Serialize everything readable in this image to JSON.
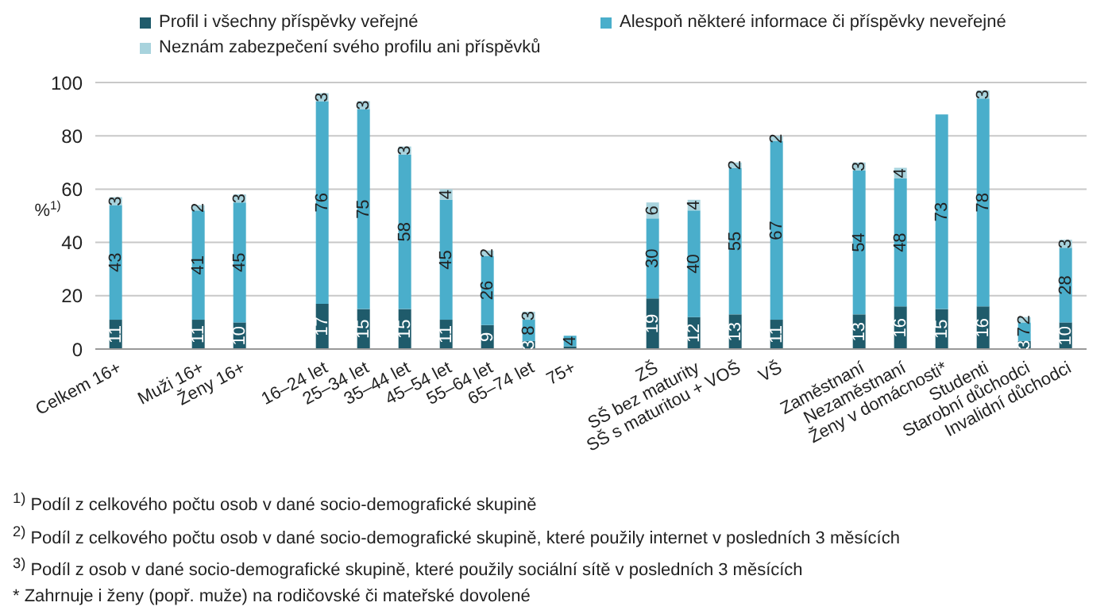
{
  "chart_data": {
    "type": "bar",
    "stacked": true,
    "ylabel": "%$^{1)}$",
    "categories": [
      "Celkem 16+",
      null,
      "Muži 16+",
      "Ženy 16+",
      null,
      "16–24 let",
      "25–34 let",
      "35–44 let",
      "45–54 let",
      "55–64 let",
      "65–74 let",
      "75+",
      null,
      "ZŠ",
      "SŠ bez maturity",
      "SŠ s maturitou + VOŠ",
      "VŠ",
      null,
      "Zaměstnaní",
      "Nezaměstnaní",
      "Ženy v domácnosti*",
      "Studenti",
      "Starobní důchodci",
      "Invalidní důchodci"
    ],
    "series": [
      {
        "name": "Profil i všechny příspěvky veřejné",
        "color": "#1f5b6b",
        "values": [
          11,
          null,
          11,
          10,
          null,
          17,
          15,
          15,
          11,
          9,
          3,
          1,
          null,
          19,
          12,
          13,
          11,
          null,
          13,
          16,
          15,
          16,
          3,
          10
        ],
        "value_labels": [
          "11",
          null,
          "11",
          "10",
          null,
          "17",
          "15",
          "15",
          "11",
          "9",
          "3",
          null,
          null,
          "19",
          "12",
          "13",
          "11",
          null,
          "13",
          "16",
          "15",
          "16",
          "3",
          "10"
        ]
      },
      {
        "name": "Alespoň některé informace či příspěvky neveřejné",
        "color": "#4aaecb",
        "values": [
          43,
          null,
          41,
          45,
          null,
          76,
          75,
          58,
          45,
          26,
          8,
          4,
          null,
          30,
          40,
          55,
          67,
          null,
          54,
          48,
          73,
          78,
          7,
          28
        ],
        "value_labels": [
          "43",
          null,
          "41",
          "45",
          null,
          "76",
          "75",
          "58",
          "45",
          "26",
          "8",
          "4",
          null,
          "30",
          "40",
          "55",
          "67",
          null,
          "54",
          "48",
          "73",
          "78",
          "7",
          "28"
        ]
      },
      {
        "name": "Neznám zabezpečení svého profilu ani příspěvků",
        "color": "#a8d3dd",
        "values": [
          3,
          null,
          2,
          3,
          null,
          3,
          3,
          3,
          4,
          2,
          3,
          null,
          null,
          6,
          4,
          2,
          2,
          null,
          3,
          4,
          null,
          3,
          2,
          3
        ],
        "value_labels": [
          "3",
          null,
          "2",
          "3",
          null,
          "3",
          "3",
          "3",
          "4",
          "2",
          "3",
          null,
          null,
          "6",
          "4",
          "2",
          "2",
          null,
          "3",
          "4",
          null,
          "3",
          "2",
          "3"
        ]
      }
    ],
    "ylim": [
      0,
      100
    ],
    "yticks": [
      0,
      20,
      40,
      60,
      80,
      100
    ],
    "grid": "y",
    "legend": "top",
    "annotations": [
      "$^{1)}$ Podíl z celkového počtu osob v dané socio-demografické skupině",
      "$^{2)}$ Podíl z celkového počtu osob v dané socio-demografické skupině, které použily internet v posledních 3 měsících",
      "$^{3)}$ Podíl z osob v dané socio-demografické skupině, které použily sociální sítě v posledních 3 měsících",
      "* Zahrnuje i ženy (popř. muže) na rodičovské či mateřské dovolené"
    ]
  }
}
